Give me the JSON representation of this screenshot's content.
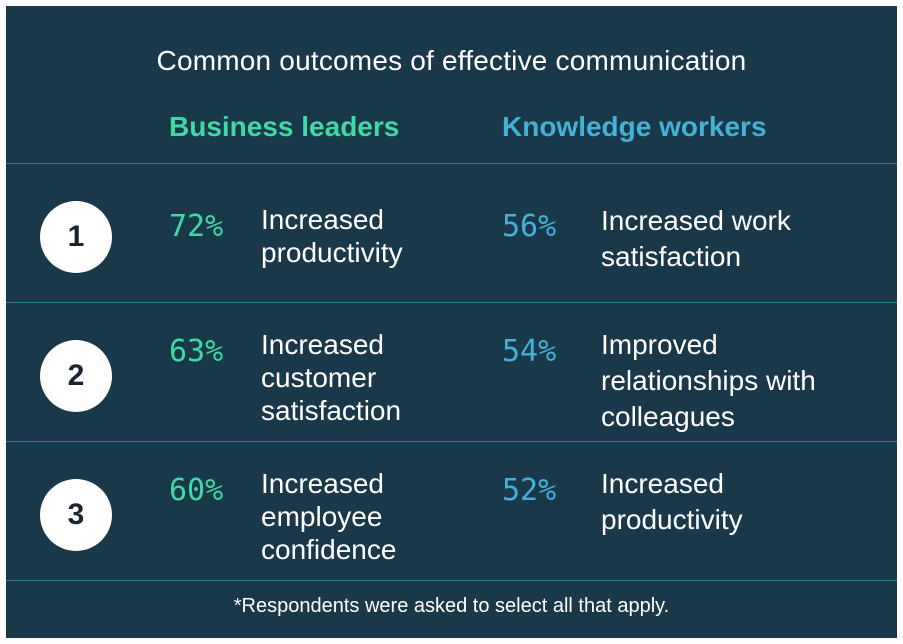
{
  "title": "Common outcomes of effective communication",
  "columns": {
    "leaders": "Business leaders",
    "workers": "Knowledge workers"
  },
  "colors": {
    "background": "#19384a",
    "leaders_accent": "#3fd9a5",
    "workers_accent": "#43b2d6",
    "divider": "#2e7f96",
    "text": "#ffffff"
  },
  "rows": [
    {
      "rank": "1",
      "leaders": {
        "percent": "72%",
        "text": "Increased\nproductivity"
      },
      "workers": {
        "percent": "56%",
        "text": "Increased work\nsatisfaction"
      }
    },
    {
      "rank": "2",
      "leaders": {
        "percent": "63%",
        "text": "Increased\ncustomer\nsatisfaction"
      },
      "workers": {
        "percent": "54%",
        "text": "Improved\nrelationships with\ncolleagues"
      }
    },
    {
      "rank": "3",
      "leaders": {
        "percent": "60%",
        "text": "Increased\nemployee\nconfidence"
      },
      "workers": {
        "percent": "52%",
        "text": "Increased\nproductivity"
      }
    }
  ],
  "footnote": "*Respondents were asked to select all that apply."
}
